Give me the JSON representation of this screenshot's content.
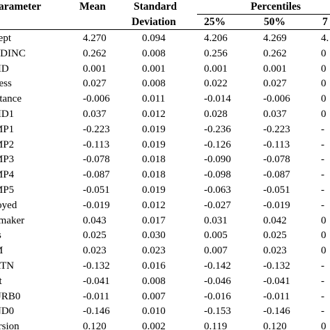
{
  "header": {
    "parameter": "arameter",
    "mean": "Mean",
    "sd_line1": "Standard",
    "sd_line2": "Deviation",
    "percentiles": "Percentiles",
    "p25": "25%",
    "p50": "50%",
    "p75": "7"
  },
  "rows": [
    {
      "name": "cept",
      "mean": "4.270",
      "sd": "0.094",
      "p25": "4.206",
      "p50": "4.269",
      "p75": "4."
    },
    {
      "name": "TDINC",
      "mean": "0.262",
      "sd": "0.008",
      "p25": "0.256",
      "p50": "0.262",
      "p75": "0"
    },
    {
      "name": "HD",
      "mean": "0.001",
      "sd": "0.001",
      "p25": "0.001",
      "p50": "0.001",
      "p75": "0"
    },
    {
      "name": "ness",
      "mean": "0.027",
      "sd": "0.008",
      "p25": "0.022",
      "p50": "0.027",
      "p75": "0"
    },
    {
      "name": "ittance",
      "mean": "-0.006",
      "sd": "0.011",
      "p25": "-0.014",
      "p50": "-0.006",
      "p75": "0"
    },
    {
      "name": "HD1",
      "mean": "0.037",
      "sd": "0.012",
      "p25": "0.028",
      "p50": "0.037",
      "p75": "0"
    },
    {
      "name": "MP1",
      "mean": "-0.223",
      "sd": "0.019",
      "p25": "-0.236",
      "p50": "-0.223",
      "p75": "-"
    },
    {
      "name": "MP2",
      "mean": "-0.113",
      "sd": "0.019",
      "p25": "-0.126",
      "p50": "-0.113",
      "p75": "-"
    },
    {
      "name": "MP3",
      "mean": "-0.078",
      "sd": "0.018",
      "p25": "-0.090",
      "p50": "-0.078",
      "p75": "-"
    },
    {
      "name": "MP4",
      "mean": "-0.087",
      "sd": "0.018",
      "p25": "-0.098",
      "p50": "-0.087",
      "p75": "-"
    },
    {
      "name": "MP5",
      "mean": "-0.051",
      "sd": "0.019",
      "p25": "-0.063",
      "p50": "-0.051",
      "p75": "-"
    },
    {
      "name": "loyed",
      "mean": "-0.019",
      "sd": "0.012",
      "p25": "-0.027",
      "p50": "-0.019",
      "p75": "-"
    },
    {
      "name": "emaker",
      "mean": "0.043",
      "sd": "0.017",
      "p25": "0.031",
      "p50": "0.042",
      "p75": "0"
    },
    {
      "name": "rs",
      "mean": "0.025",
      "sd": "0.030",
      "p25": "0.005",
      "p50": "0.025",
      "p75": "0"
    },
    {
      "name": "M",
      "mean": "0.023",
      "sd": "0.023",
      "p25": "0.007",
      "p50": "0.023",
      "p75": "0"
    },
    {
      "name": "RTN",
      "mean": "-0.132",
      "sd": "0.016",
      "p25": "-0.142",
      "p50": "-0.132",
      "p75": "-"
    },
    {
      "name": "nt",
      "mean": "-0.041",
      "sd": "0.008",
      "p25": "-0.046",
      "p50": "-0.041",
      "p75": "-"
    },
    {
      "name": "URB0",
      "mean": "-0.011",
      "sd": "0.007",
      "p25": "-0.016",
      "p50": "-0.011",
      "p75": "-"
    },
    {
      "name": "ND0",
      "mean": "-0.146",
      "sd": "0.010",
      "p25": "-0.153",
      "p50": "-0.146",
      "p75": "-"
    },
    {
      "name": "ersion",
      "mean": "0.120",
      "sd": "0.002",
      "p25": "0.119",
      "p50": "0.120",
      "p75": "0"
    }
  ]
}
